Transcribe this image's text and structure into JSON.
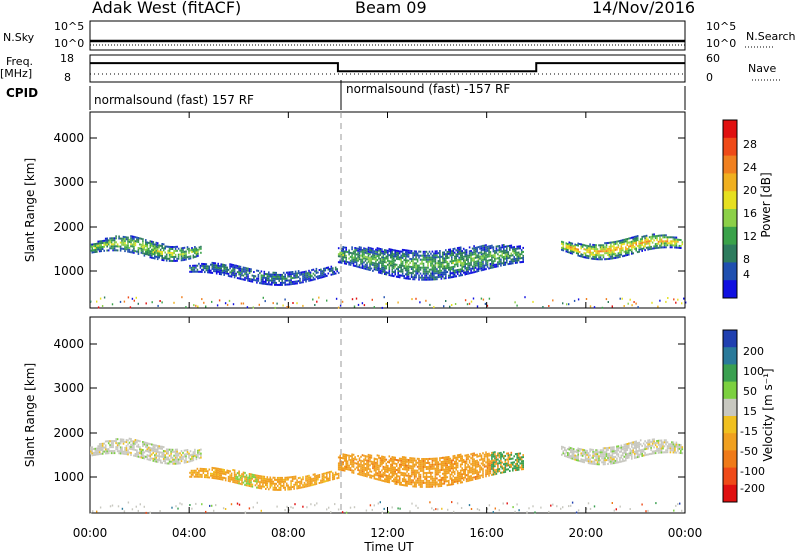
{
  "header": {
    "radar": "Adak West (fitACF)",
    "beam": "Beam 09",
    "date": "14/Nov/2016"
  },
  "top_panels": {
    "nsky_label": "N.Sky",
    "nsky_ticks": [
      "10^5",
      "10^0"
    ],
    "nsearch_label": "N.Search",
    "nsearch_ticks": [
      "10^5",
      "10^0"
    ],
    "freq_label": "Freq.",
    "freq_unit": "[MHz]",
    "freq_ticks": [
      "18",
      "8"
    ],
    "nave_label": "Nave",
    "nave_ticks": [
      "60",
      "0"
    ],
    "cpid_label": "CPID",
    "cpid_segments": [
      {
        "label": "normalsound (fast) 157 RF",
        "start_h": 0,
        "end_h": 10
      },
      {
        "label": "normalsound (fast) -157 RF",
        "start_h": 10,
        "end_h": 24
      }
    ],
    "freq_levels": [
      {
        "start_h": 0,
        "end_h": 10,
        "mhz": 14.4
      },
      {
        "start_h": 10,
        "end_h": 18,
        "mhz": 10.8
      },
      {
        "start_h": 18,
        "end_h": 24,
        "mhz": 14.4
      }
    ]
  },
  "chart_data": [
    {
      "type": "heatmap",
      "name": "power",
      "ylabel": "Slant Range [km]",
      "ylim": [
        180,
        4600
      ],
      "yticks": [
        "1000",
        "2000",
        "3000",
        "4000"
      ],
      "xlim": [
        0,
        24
      ],
      "colorbar_label": "Power [dB]",
      "colorbar_ticks": [
        "4",
        "8",
        "12",
        "16",
        "20",
        "24",
        "28"
      ],
      "colorbar_range": [
        0,
        32
      ],
      "colors": [
        "#1010e0",
        "#2050b0",
        "#2e7c5e",
        "#3aa24a",
        "#8cd048",
        "#e6e020",
        "#f0b020",
        "#f08020",
        "#ef4a18",
        "#e01010"
      ],
      "echo_regions": [
        {
          "t0": 0.0,
          "t1": 4.5,
          "r_center": 1500,
          "r_width": 320,
          "value": 14
        },
        {
          "t0": 4.0,
          "t1": 10.0,
          "r_center": 950,
          "r_width": 260,
          "value": 7
        },
        {
          "t0": 10.0,
          "t1": 17.5,
          "r_center": 1250,
          "r_width": 560,
          "value": 11
        },
        {
          "t0": 19.0,
          "t1": 23.9,
          "r_center": 1550,
          "r_width": 320,
          "value": 19
        }
      ],
      "vline_h": 10
    },
    {
      "type": "heatmap",
      "name": "velocity",
      "ylabel": "Slant Range [km]",
      "xlabel": "Time UT",
      "ylim": [
        180,
        4600
      ],
      "yticks": [
        "1000",
        "2000",
        "3000",
        "4000"
      ],
      "xlim": [
        0,
        24
      ],
      "xticks": [
        "00:00",
        "04:00",
        "08:00",
        "12:00",
        "16:00",
        "20:00",
        "00:00"
      ],
      "colorbar_label": "Velocity [m s⁻¹]",
      "colorbar_ticks": [
        "200",
        "100",
        "50",
        "15",
        "-15",
        "-50",
        "-100",
        "-200"
      ],
      "colors": [
        "#2040b0",
        "#2a7a9a",
        "#3aa050",
        "#7cd040",
        "#c8c8c0",
        "#f0c020",
        "#f0a020",
        "#ef7a18",
        "#ef4a18",
        "#e01010"
      ],
      "echo_regions": [
        {
          "t0": 0.0,
          "t1": 4.5,
          "r_center": 1550,
          "r_width": 320,
          "value": 0
        },
        {
          "t0": 4.0,
          "t1": 10.0,
          "r_center": 950,
          "r_width": 260,
          "value": -45
        },
        {
          "t0": 10.0,
          "t1": 17.5,
          "r_center": 1200,
          "r_width": 560,
          "value": -60
        },
        {
          "t0": 19.0,
          "t1": 23.9,
          "r_center": 1550,
          "r_width": 320,
          "value": 0
        }
      ],
      "vline_h": 10
    }
  ]
}
